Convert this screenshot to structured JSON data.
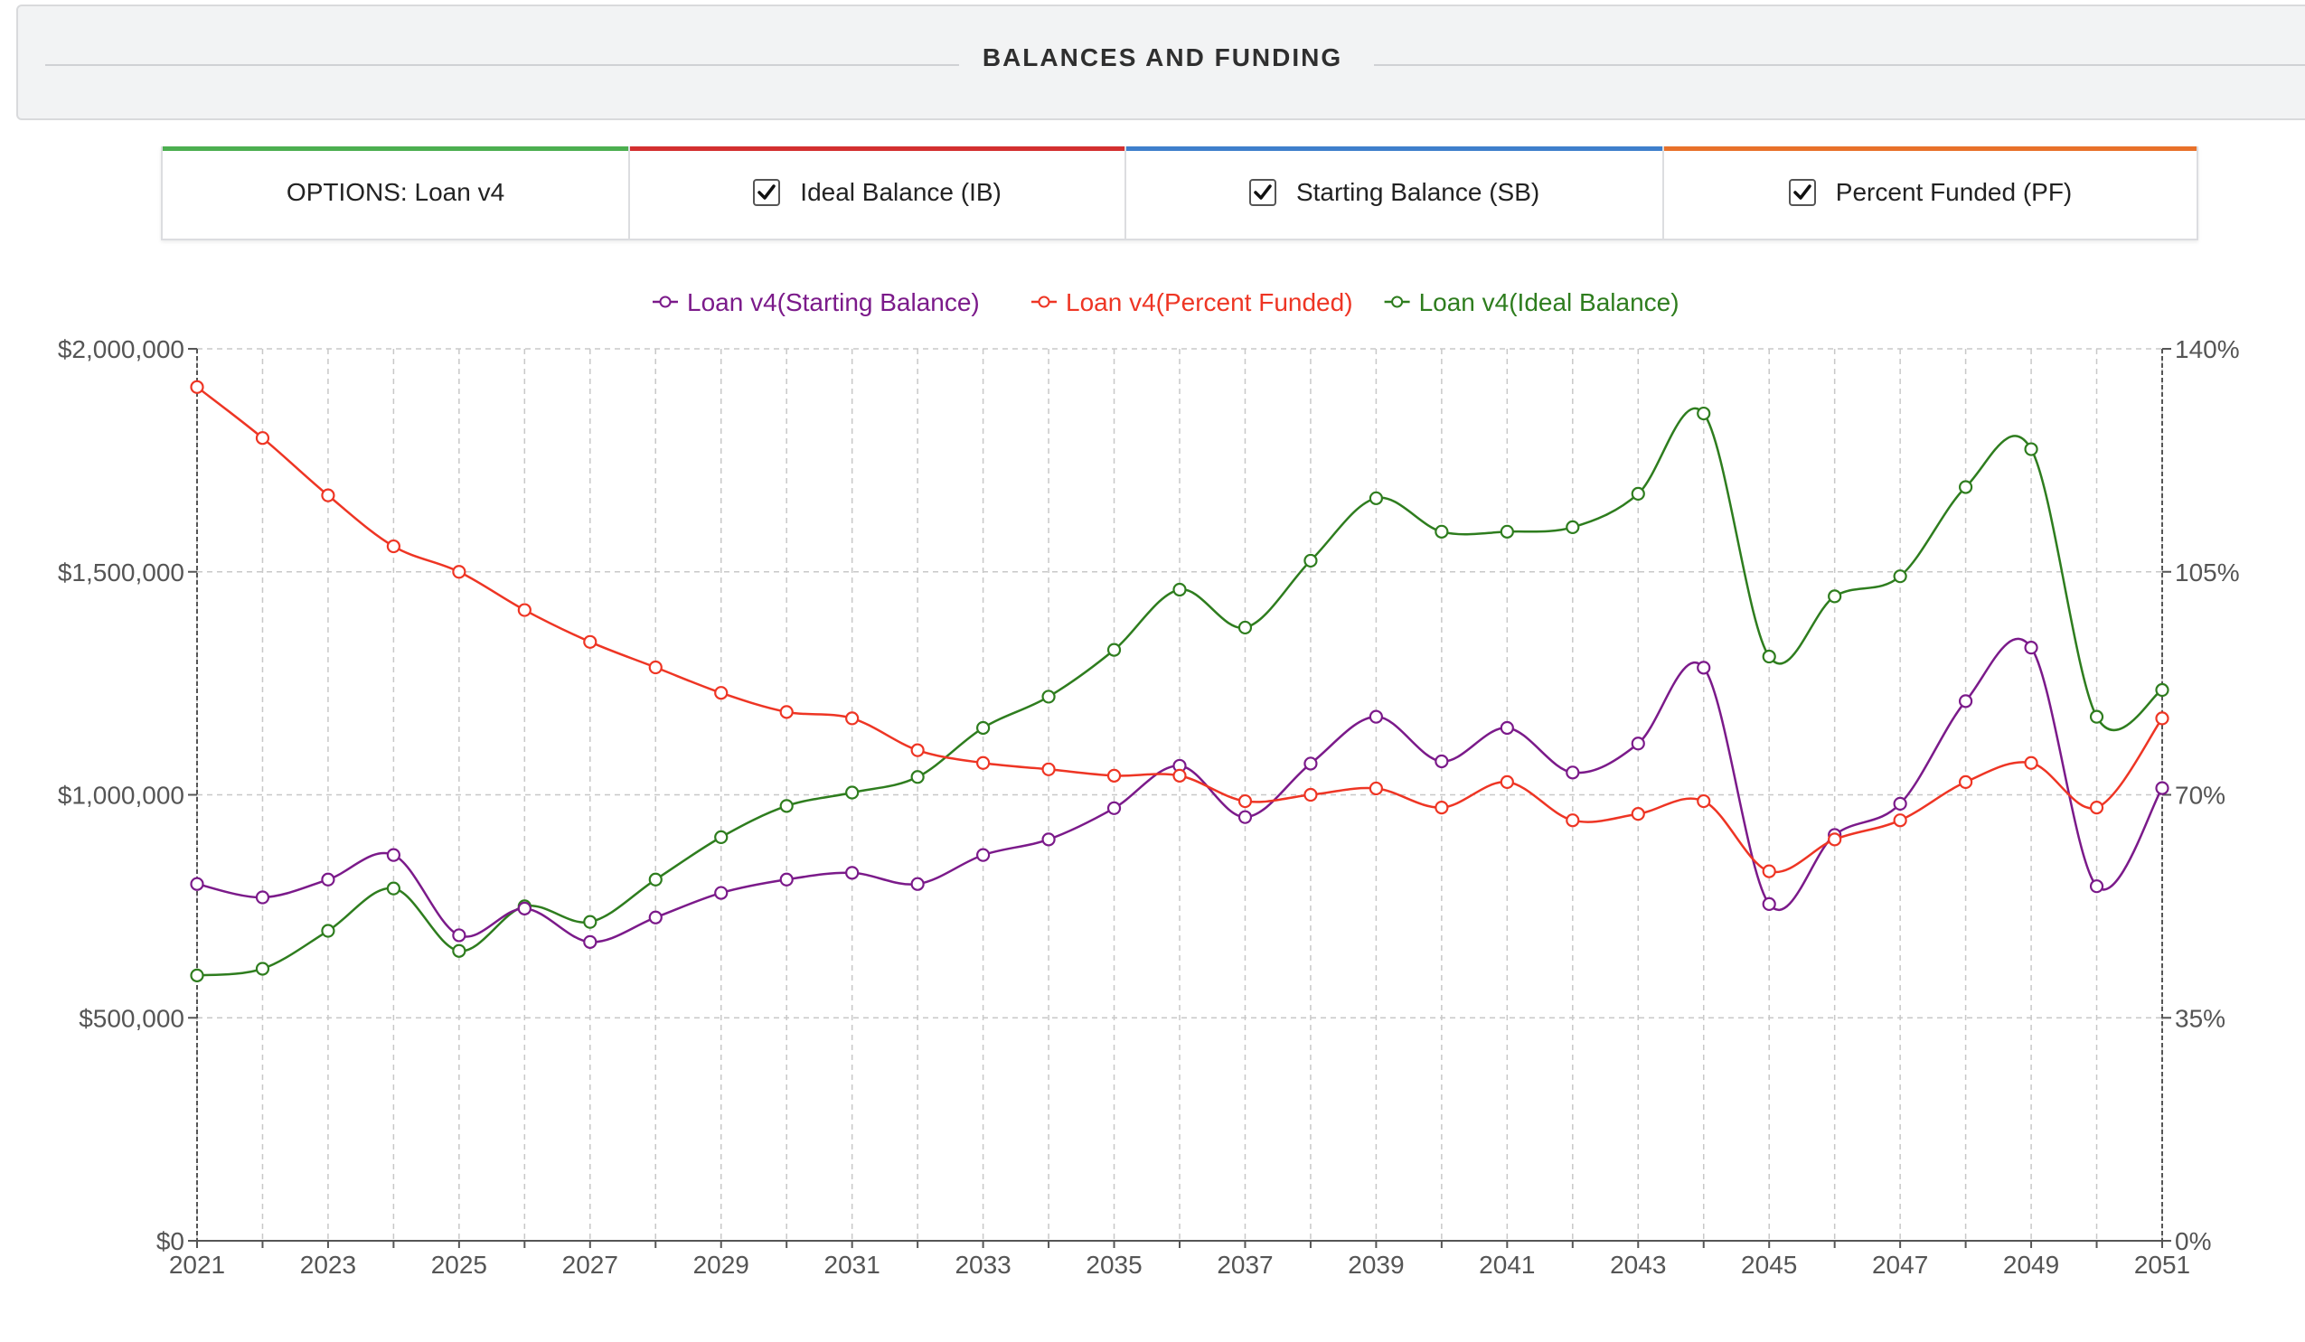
{
  "header": {
    "title": "BALANCES AND FUNDING"
  },
  "options": {
    "scenario_label": "OPTIONS: Loan v4",
    "toggles": [
      {
        "label": "Ideal Balance (IB)",
        "checked": true,
        "color": "#d32f2f"
      },
      {
        "label": "Starting Balance (SB)",
        "checked": true,
        "color": "#3f7fcc"
      },
      {
        "label": "Percent Funded (PF)",
        "checked": true,
        "color": "#e8712a"
      }
    ],
    "scenario_color": "#4caf50"
  },
  "chart_data": {
    "type": "line",
    "x": [
      2021,
      2022,
      2023,
      2024,
      2025,
      2026,
      2027,
      2028,
      2029,
      2030,
      2031,
      2032,
      2033,
      2034,
      2035,
      2036,
      2037,
      2038,
      2039,
      2040,
      2041,
      2042,
      2043,
      2044,
      2045,
      2046,
      2047,
      2048,
      2049,
      2050,
      2051
    ],
    "x_ticks": [
      "2021",
      "2023",
      "2025",
      "2027",
      "2029",
      "2031",
      "2033",
      "2035",
      "2037",
      "2039",
      "2041",
      "2043",
      "2045",
      "2047",
      "2049",
      "2051"
    ],
    "y_left": {
      "range": [
        0,
        2000000
      ],
      "ticks": [
        "$0",
        "$500,000",
        "$1,000,000",
        "$1,500,000",
        "$2,000,000"
      ]
    },
    "y_right": {
      "range": [
        0,
        140
      ],
      "ticks": [
        "0%",
        "35%",
        "70%",
        "105%",
        "140%"
      ]
    },
    "grid": true,
    "legend_position": "top-center",
    "series": [
      {
        "name": "Loan v4(Starting Balance)",
        "axis": "left",
        "color": "#7b1a8a",
        "values": [
          800000,
          770000,
          810000,
          865000,
          685000,
          745000,
          670000,
          725000,
          780000,
          810000,
          825000,
          800000,
          865000,
          900000,
          970000,
          1065000,
          950000,
          1070000,
          1175000,
          1075000,
          1150000,
          1050000,
          1115000,
          1285000,
          755000,
          910000,
          980000,
          1210000,
          1330000,
          795000,
          1015000
        ]
      },
      {
        "name": "Loan v4(Percent Funded)",
        "axis": "right",
        "color": "#ee3524",
        "values": [
          134,
          126,
          117,
          109,
          105,
          99,
          94,
          90,
          86,
          83,
          82,
          77,
          75,
          74,
          73,
          73,
          69,
          70,
          71,
          68,
          72,
          66,
          67,
          69,
          58,
          63,
          66,
          72,
          75,
          68,
          82
        ]
      },
      {
        "name": "Loan v4(Ideal Balance)",
        "axis": "left",
        "color": "#2e7d1e",
        "values": [
          595000,
          610000,
          695000,
          790000,
          650000,
          750000,
          715000,
          810000,
          905000,
          975000,
          1005000,
          1040000,
          1150000,
          1220000,
          1325000,
          1460000,
          1375000,
          1525000,
          1665000,
          1590000,
          1590000,
          1600000,
          1675000,
          1855000,
          1310000,
          1445000,
          1490000,
          1690000,
          1775000,
          1175000,
          1235000
        ]
      }
    ]
  }
}
